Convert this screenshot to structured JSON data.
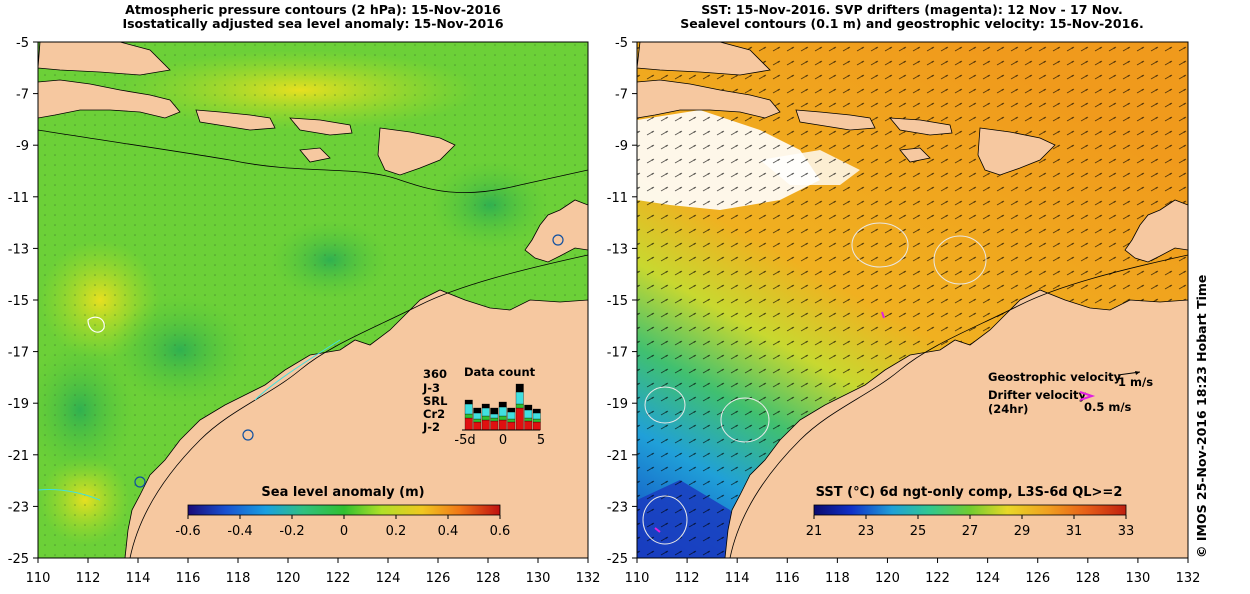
{
  "left_panel": {
    "title_line1": "Atmospheric pressure contours (2 hPa): 15-Nov-2016",
    "title_line2": "Isostatically adjusted sea level anomaly: 15-Nov-2016",
    "colorbar": {
      "title": "Sea level anomaly (m)",
      "ticks": [
        "-0.6",
        "-0.4",
        "-0.2",
        "0",
        "0.2",
        "0.4",
        "0.6"
      ],
      "colors": [
        "#1a0a78",
        "#1a50d0",
        "#1a9ee6",
        "#40d0c0",
        "#30c060",
        "#30cc30",
        "#90e030",
        "#d8e820",
        "#f0c020",
        "#f09018",
        "#e85018",
        "#c01010"
      ]
    },
    "data_count": {
      "title": "Data count",
      "max_label": "360",
      "satellites": [
        {
          "name": "J-3",
          "color": "#000000"
        },
        {
          "name": "SRL",
          "color": "#40e0e0"
        },
        {
          "name": "Cr2",
          "color": "#30c030"
        },
        {
          "name": "J-2",
          "color": "#e01010"
        }
      ],
      "axis_labels": [
        "-5d",
        "0",
        "5"
      ]
    }
  },
  "right_panel": {
    "title_line1": "SST: 15-Nov-2016. SVP drifters (magenta): 12 Nov - 17 Nov.",
    "title_line2": "Sealevel contours (0.1 m) and geostrophic velocity: 15-Nov-2016.",
    "colorbar": {
      "title": "SST (°C) 6d ngt-only comp, L3S-6d QL>=2",
      "ticks": [
        "21",
        "23",
        "25",
        "27",
        "29",
        "31",
        "33"
      ],
      "colors": [
        "#0a0a6e",
        "#1030c8",
        "#1a7ae0",
        "#20b0d8",
        "#30c8a0",
        "#40c040",
        "#a0d830",
        "#e8d828",
        "#f0b020",
        "#f09018",
        "#e86018",
        "#c02010"
      ]
    },
    "legend": {
      "geo_label": "Geostrophic velocity",
      "geo_scale": "1 m/s",
      "drifter_label_line1": "Drifter velocity",
      "drifter_label_line2": "(24hr)",
      "drifter_scale": "0.5 m/s"
    }
  },
  "axes": {
    "y_ticks": [
      "-5",
      "-7",
      "-9",
      "-11",
      "-13",
      "-15",
      "-17",
      "-19",
      "-21",
      "-23",
      "-25"
    ],
    "x_ticks": [
      "110",
      "112",
      "114",
      "116",
      "118",
      "120",
      "122",
      "124",
      "126",
      "128",
      "130",
      "132"
    ]
  },
  "side_label": "© IMOS 25-Nov-2016 18:23 Hobart Time"
}
